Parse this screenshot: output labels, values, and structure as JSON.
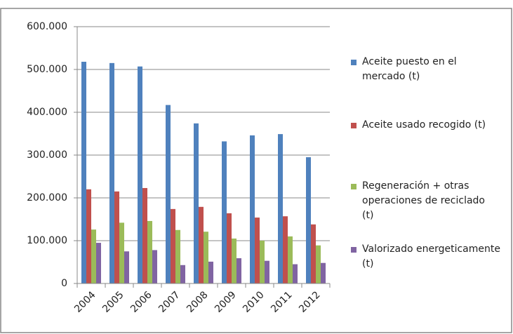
{
  "chart_data": {
    "type": "bar",
    "categories": [
      "2004",
      "2005",
      "2006",
      "2007",
      "2008",
      "2009",
      "2010",
      "2011",
      "2012"
    ],
    "series": [
      {
        "name": "Aceite puesto en el mercado  (t)",
        "color": "#4f81bd",
        "values": [
          518000,
          515000,
          507000,
          417000,
          374000,
          332000,
          346000,
          349000,
          295000
        ]
      },
      {
        "name": "Aceite usado recogido (t)",
        "color": "#c0504d",
        "values": [
          220000,
          215000,
          223000,
          174000,
          179000,
          164000,
          154000,
          157000,
          138000
        ]
      },
      {
        "name": "Regeneración + otras operaciones de reciclado (t)",
        "color": "#9bbb59",
        "values": [
          126000,
          142000,
          146000,
          125000,
          121000,
          105000,
          100000,
          110000,
          89000
        ]
      },
      {
        "name": "Valorizado energeticamente (t)",
        "color": "#8064a2",
        "values": [
          95000,
          75000,
          78000,
          43000,
          51000,
          59000,
          53000,
          45000,
          48000
        ]
      }
    ],
    "ylim": [
      0,
      600000
    ],
    "yticks": [
      0,
      {
        "value": 100000,
        "label": "100.000"
      },
      {
        "value": 200000,
        "label": "200.000"
      },
      {
        "value": 300000,
        "label": "300.000"
      },
      {
        "value": 400000,
        "label": "400.000"
      },
      {
        "value": 500000,
        "label": "500.000"
      },
      {
        "value": 600000,
        "label": "600.000"
      }
    ],
    "grid": true,
    "legend": "right"
  }
}
